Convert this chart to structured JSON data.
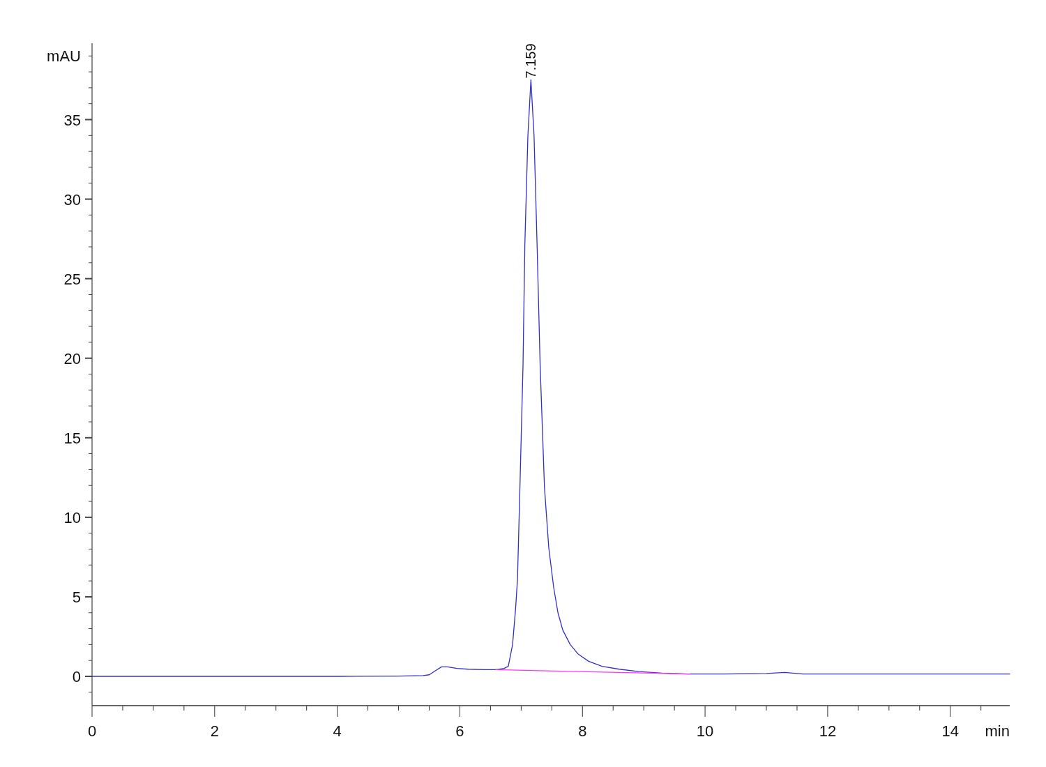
{
  "chart_data": {
    "type": "line",
    "xlabel": "min",
    "ylabel": "mAU",
    "xlim": [
      0,
      14.97
    ],
    "ylim": [
      -1.84,
      39.8
    ],
    "xticks": [
      0,
      {
        "value": 0.5,
        "label": null
      },
      {
        "value": 1,
        "label": null
      },
      {
        "value": 1.5,
        "label": null
      },
      2,
      {
        "value": 2.5,
        "label": null
      },
      {
        "value": 3,
        "label": null
      },
      {
        "value": 3.5,
        "label": null
      },
      4,
      {
        "value": 4.5,
        "label": null
      },
      {
        "value": 5,
        "label": null
      },
      {
        "value": 5.5,
        "label": null
      },
      6,
      {
        "value": 6.5,
        "label": null
      },
      {
        "value": 7,
        "label": null
      },
      {
        "value": 7.5,
        "label": null
      },
      8,
      {
        "value": 8.5,
        "label": null
      },
      {
        "value": 9,
        "label": null
      },
      {
        "value": 9.5,
        "label": null
      },
      10,
      {
        "value": 10.5,
        "label": null
      },
      {
        "value": 11,
        "label": null
      },
      {
        "value": 11.5,
        "label": null
      },
      12,
      {
        "value": 12.5,
        "label": null
      },
      {
        "value": 13,
        "label": null
      },
      {
        "value": 13.5,
        "label": null
      },
      14,
      {
        "value": 14.5,
        "label": null
      }
    ],
    "yticks": [
      {
        "value": -1,
        "label": null
      },
      0,
      {
        "value": 1,
        "label": null
      },
      {
        "value": 2,
        "label": null
      },
      {
        "value": 3,
        "label": null
      },
      {
        "value": 4,
        "label": null
      },
      5,
      {
        "value": 6,
        "label": null
      },
      {
        "value": 7,
        "label": null
      },
      {
        "value": 8,
        "label": null
      },
      {
        "value": 9,
        "label": null
      },
      10,
      {
        "value": 11,
        "label": null
      },
      {
        "value": 12,
        "label": null
      },
      {
        "value": 13,
        "label": null
      },
      {
        "value": 14,
        "label": null
      },
      15,
      {
        "value": 16,
        "label": null
      },
      {
        "value": 17,
        "label": null
      },
      {
        "value": 18,
        "label": null
      },
      {
        "value": 19,
        "label": null
      },
      20,
      {
        "value": 21,
        "label": null
      },
      {
        "value": 22,
        "label": null
      },
      {
        "value": 23,
        "label": null
      },
      {
        "value": 24,
        "label": null
      },
      25,
      {
        "value": 26,
        "label": null
      },
      {
        "value": 27,
        "label": null
      },
      {
        "value": 28,
        "label": null
      },
      {
        "value": 29,
        "label": null
      },
      30,
      {
        "value": 31,
        "label": null
      },
      {
        "value": 32,
        "label": null
      },
      {
        "value": 33,
        "label": null
      },
      {
        "value": 34,
        "label": null
      },
      35,
      {
        "value": 36,
        "label": null
      },
      {
        "value": 37,
        "label": null
      },
      {
        "value": 38,
        "label": null
      },
      {
        "value": 39,
        "label": null
      }
    ],
    "grid": false,
    "marker": "none",
    "line_style": "solid",
    "series": [
      {
        "color": "#3030c8",
        "x": [
          0,
          1,
          2,
          3,
          4,
          5,
          5.4,
          5.5,
          5.6,
          5.7,
          5.8,
          5.95,
          6.14,
          6.4,
          6.59,
          6.72,
          6.79,
          6.86,
          6.91,
          6.94,
          6.98,
          7.03,
          7.06,
          7.11,
          7.159,
          7.21,
          7.26,
          7.31,
          7.38,
          7.45,
          7.53,
          7.6,
          7.68,
          7.8,
          7.93,
          8.1,
          8.32,
          8.6,
          8.92,
          9.3,
          9.7,
          10.3,
          11,
          11.3,
          11.6,
          12.5,
          13.5,
          14.97
        ],
        "values": [
          0,
          0,
          0,
          0,
          0,
          0.02,
          0.05,
          0.1,
          0.35,
          0.6,
          0.6,
          0.5,
          0.45,
          0.42,
          0.42,
          0.5,
          0.63,
          2,
          4.3,
          6.1,
          11.9,
          19.5,
          27.1,
          34,
          37.5,
          34,
          27.1,
          19.5,
          11.9,
          8.1,
          5.6,
          4,
          2.9,
          2,
          1.4,
          0.95,
          0.63,
          0.45,
          0.3,
          0.2,
          0.15,
          0.15,
          0.18,
          0.25,
          0.15,
          0.15,
          0.15,
          0.15
        ]
      },
      {
        "color": "#ff33ff",
        "x": [
          6.59,
          9.75
        ],
        "values": [
          0.42,
          0.15
        ]
      }
    ],
    "annotations": [
      {
        "text": "7.159",
        "x": 7.159,
        "y": 37.5
      }
    ]
  }
}
